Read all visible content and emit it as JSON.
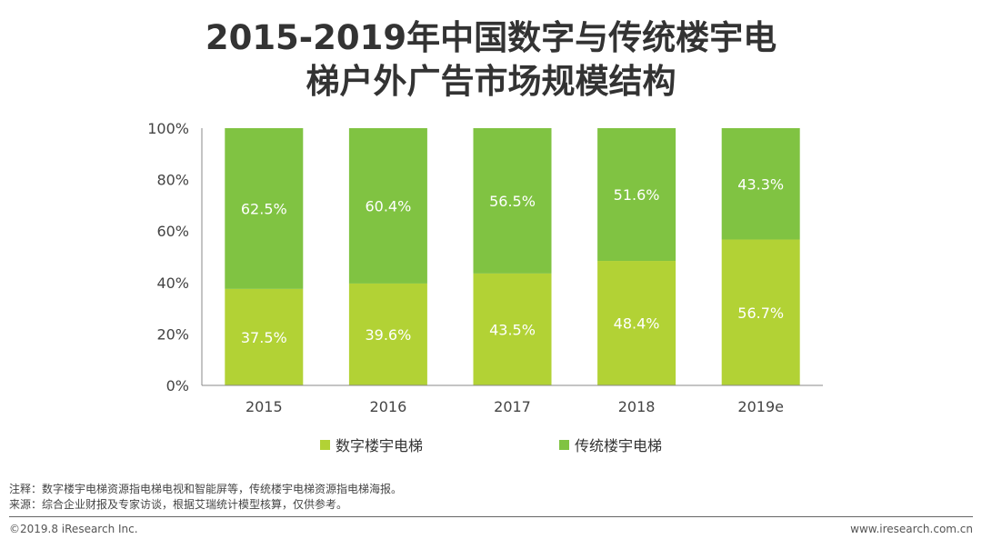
{
  "title_line1": "2015-2019年中国数字与传统楼宇电",
  "title_line2": "梯户外广告市场规模结构",
  "chart_data": {
    "type": "bar",
    "stacked": true,
    "percent": true,
    "categories": [
      "2015",
      "2016",
      "2017",
      "2018",
      "2019e"
    ],
    "series": [
      {
        "name": "数字楼宇电梯",
        "values": [
          37.5,
          39.6,
          43.5,
          48.4,
          56.7
        ],
        "labels": [
          "37.5%",
          "39.6%",
          "43.5%",
          "48.4%",
          "56.7%"
        ],
        "color": "#b2d235"
      },
      {
        "name": "传统楼宇电梯",
        "values": [
          62.5,
          60.4,
          56.5,
          51.6,
          43.3
        ],
        "labels": [
          "62.5%",
          "60.4%",
          "56.5%",
          "51.6%",
          "43.3%"
        ],
        "color": "#80c342"
      }
    ],
    "yticks": [
      "0%",
      "20%",
      "40%",
      "60%",
      "80%",
      "100%"
    ],
    "ylim": [
      0,
      100
    ],
    "legend_position": "bottom",
    "grid": false
  },
  "notes": {
    "line1": "注释：数字楼宇电梯资源指电梯电视和智能屏等，传统楼宇电梯资源指电梯海报。",
    "line2": "来源：综合企业财报及专家访谈，根据艾瑞统计模型核算，仅供参考。"
  },
  "footer": {
    "copyright": "©2019.8 iResearch Inc.",
    "website": "www.iresearch.com.cn"
  }
}
